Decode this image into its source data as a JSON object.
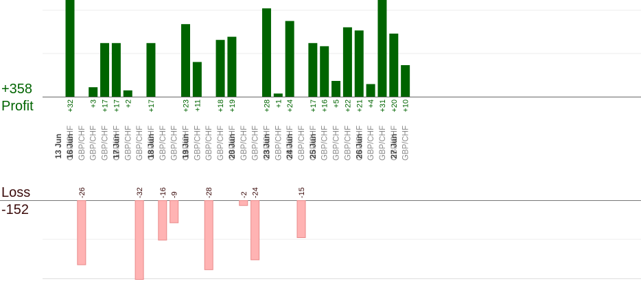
{
  "profit": {
    "total": "+358",
    "label": "Profit",
    "color": "#006400"
  },
  "loss": {
    "total": "-152",
    "label": "Loss",
    "color": "#3a0a0a",
    "bar_color": "#ffb3b3",
    "bar_border": "#e88a8a"
  },
  "chart_data": {
    "type": "bar",
    "pair": "GBP/CHF",
    "profit_axis_max": 32,
    "loss_axis_min": -32,
    "bars": [
      {
        "date": "13 Jun",
        "label": "GBP/CHF",
        "value": 32
      },
      {
        "date": "16 Jun",
        "label": "GBP/CHF",
        "value": -26
      },
      {
        "date": null,
        "label": "GBP/CHF",
        "value": 3
      },
      {
        "date": null,
        "label": "GBP/CHF",
        "value": 17
      },
      {
        "date": null,
        "label": "GBP/CHF",
        "value": 17
      },
      {
        "date": "17 Jun",
        "label": "GBP/CHF",
        "value": 2
      },
      {
        "date": null,
        "label": "GBP/CHF",
        "value": -32
      },
      {
        "date": null,
        "label": "GBP/CHF",
        "value": 17
      },
      {
        "date": "18 Jun",
        "label": "GBP/CHF",
        "value": -16
      },
      {
        "date": null,
        "label": "GBP/CHF",
        "value": -9
      },
      {
        "date": null,
        "label": "GBP/CHF",
        "value": 23
      },
      {
        "date": "19 Jun",
        "label": "GBP/CHF",
        "value": 11
      },
      {
        "date": null,
        "label": "GBP/CHF",
        "value": -28
      },
      {
        "date": null,
        "label": "GBP/CHF",
        "value": 18
      },
      {
        "date": null,
        "label": "GBP/CHF",
        "value": 19
      },
      {
        "date": "20 Jun",
        "label": "GBP/CHF",
        "value": -2
      },
      {
        "date": null,
        "label": "GBP/CHF",
        "value": -24
      },
      {
        "date": null,
        "label": "GBP/CHF",
        "value": 28
      },
      {
        "date": "23 Jun",
        "label": "GBP/CHF",
        "value": 1
      },
      {
        "date": null,
        "label": "GBP/CHF",
        "value": 24
      },
      {
        "date": "24 Jun",
        "label": "GBP/CHF",
        "value": -15
      },
      {
        "date": null,
        "label": "GBP/CHF",
        "value": 17
      },
      {
        "date": "25 Jun",
        "label": "GBP/CHF",
        "value": 16
      },
      {
        "date": null,
        "label": "GBP/CHF",
        "value": 5
      },
      {
        "date": null,
        "label": "GBP/CHF",
        "value": 22
      },
      {
        "date": null,
        "label": "GBP/CHF",
        "value": 21
      },
      {
        "date": "26 Jun",
        "label": "GBP/CHF",
        "value": 4
      },
      {
        "date": null,
        "label": "GBP/CHF",
        "value": 31
      },
      {
        "date": null,
        "label": "GBP/CHF",
        "value": 20
      },
      {
        "date": "27 Jun",
        "label": "GBP/CHF",
        "value": 10
      }
    ]
  }
}
